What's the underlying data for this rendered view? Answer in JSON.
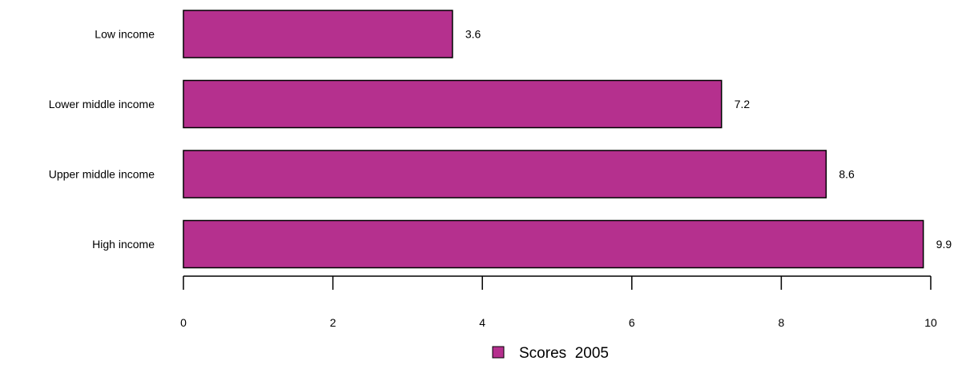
{
  "chart_data": {
    "type": "bar",
    "orientation": "horizontal",
    "categories": [
      "Low income",
      "Lower middle income",
      "Upper middle income",
      "High income"
    ],
    "series": [
      {
        "name": "Scores  2005",
        "values": [
          3.6,
          7.2,
          8.6,
          9.9
        ],
        "labels": [
          "3.6",
          "7.2",
          "8.6",
          "9.9"
        ],
        "color": "#b5308e"
      }
    ],
    "xlim": [
      0,
      10
    ],
    "xticks": [
      0,
      2,
      4,
      6,
      8,
      10
    ],
    "xtick_labels": [
      "0",
      "2",
      "4",
      "6",
      "8",
      "10"
    ],
    "grid": false,
    "legend_position": "bottom"
  }
}
